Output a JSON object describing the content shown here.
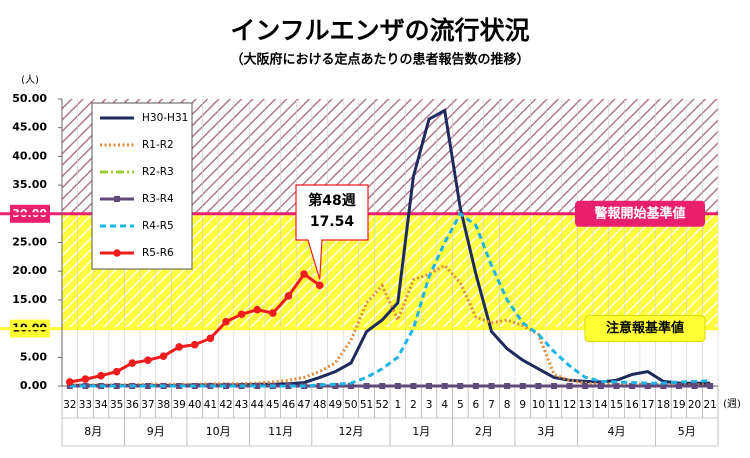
{
  "chart_data": {
    "type": "line",
    "title": "インフルエンザの流行状況",
    "subtitle": "（大阪府における定点あたりの患者報告数の推移）",
    "y_unit": "(人)",
    "x_unit": "(週)",
    "categories": [
      "32",
      "33",
      "34",
      "35",
      "36",
      "37",
      "38",
      "39",
      "40",
      "41",
      "42",
      "43",
      "44",
      "45",
      "46",
      "47",
      "48",
      "49",
      "50",
      "51",
      "52",
      "1",
      "2",
      "3",
      "4",
      "5",
      "6",
      "7",
      "8",
      "9",
      "10",
      "11",
      "12",
      "13",
      "14",
      "15",
      "16",
      "17",
      "18",
      "19",
      "20",
      "21"
    ],
    "x_groups": [
      {
        "label": "8月",
        "span": 4
      },
      {
        "label": "9月",
        "span": 4
      },
      {
        "label": "10月",
        "span": 4
      },
      {
        "label": "11月",
        "span": 4
      },
      {
        "label": "12月",
        "span": 5
      },
      {
        "label": "1月",
        "span": 4
      },
      {
        "label": "2月",
        "span": 4
      },
      {
        "label": "3月",
        "span": 4
      },
      {
        "label": "4月",
        "span": 5
      },
      {
        "label": "5月",
        "span": 4
      }
    ],
    "ylim": [
      0,
      50
    ],
    "yticks": [
      {
        "value": 0,
        "label": "0.00"
      },
      {
        "value": 5,
        "label": "5.00"
      },
      {
        "value": 10,
        "label": "10.00"
      },
      {
        "value": 15,
        "label": "15.00"
      },
      {
        "value": 20,
        "label": "20.00"
      },
      {
        "value": 25,
        "label": "25.00"
      },
      {
        "value": 30,
        "label": "30.00"
      },
      {
        "value": 35,
        "label": "35.00"
      },
      {
        "value": 40,
        "label": "40.00"
      },
      {
        "value": 45,
        "label": "45.00"
      },
      {
        "value": 50,
        "label": "50.00"
      }
    ],
    "thresholds": [
      {
        "value": 30,
        "label": "警報開始基準値",
        "color": "#e8206e",
        "band": "#b07890"
      },
      {
        "value": 10,
        "label": "注意報基準値",
        "color": "#ffff33",
        "band": "#ffff40"
      }
    ],
    "series": [
      {
        "name": "H30-H31",
        "color": "#1f2a5c",
        "style": "solid",
        "values": [
          0.1,
          0.1,
          0.1,
          0.1,
          0.1,
          0.1,
          0.1,
          0.1,
          0.2,
          0.2,
          0.2,
          0.2,
          0.3,
          0.3,
          0.4,
          0.6,
          1.5,
          2.5,
          4,
          9.5,
          11.5,
          14.5,
          36.5,
          46.5,
          48,
          31,
          19.5,
          9.5,
          6.5,
          4.5,
          3,
          1.5,
          1,
          0.8,
          0.7,
          1,
          2,
          2.5,
          0.8,
          0.5,
          0.5,
          0.5
        ]
      },
      {
        "name": "R1-R2",
        "color": "#e08a3c",
        "style": "dotted",
        "values": [
          0.2,
          0.2,
          0.2,
          0.2,
          0.2,
          0.3,
          0.3,
          0.3,
          0.3,
          0.4,
          0.4,
          0.4,
          0.5,
          0.7,
          1,
          1.5,
          2.5,
          4,
          8,
          14.5,
          17.5,
          11.5,
          18.5,
          19.5,
          21,
          18,
          12,
          11,
          11.5,
          10.5,
          9,
          2,
          1,
          0.5,
          0.3,
          0.3,
          0.3,
          0.3,
          0.2,
          0.2,
          0.2,
          0.2
        ]
      },
      {
        "name": "R2-R3",
        "color": "#9acd32",
        "style": "dashdot",
        "values": [
          0,
          0,
          0,
          0,
          0,
          0,
          0,
          0,
          0,
          0,
          0,
          0,
          0,
          0,
          0,
          0,
          0,
          0,
          0,
          0,
          0,
          0,
          0,
          0,
          0,
          0,
          0,
          0,
          0,
          0,
          0,
          0,
          0,
          0,
          0,
          0,
          0,
          0,
          0,
          0,
          0,
          0
        ]
      },
      {
        "name": "R3-R4",
        "color": "#604a7b",
        "style": "solid",
        "marker": "square",
        "values": [
          0,
          0,
          0,
          0,
          0,
          0,
          0,
          0,
          0,
          0,
          0,
          0,
          0,
          0,
          0,
          0,
          0,
          0,
          0,
          0,
          0,
          0,
          0,
          0,
          0,
          0,
          0,
          0,
          0,
          0,
          0,
          0,
          0,
          0,
          0,
          0,
          0,
          0,
          0,
          0,
          0,
          0
        ]
      },
      {
        "name": "R4-R5",
        "color": "#1eb4e6",
        "style": "dashed",
        "values": [
          0,
          0,
          0,
          0,
          0,
          0,
          0,
          0,
          0,
          0,
          0,
          0,
          0,
          0,
          0,
          0,
          0.2,
          0.3,
          0.5,
          1.5,
          3,
          5,
          10,
          19,
          25,
          30,
          28,
          21,
          15,
          11,
          9,
          6,
          3.5,
          1.5,
          0.8,
          0.7,
          0.6,
          0.5,
          0.5,
          0.7,
          0.8,
          0.9
        ]
      },
      {
        "name": "R5-R6",
        "color": "#ee1c1c",
        "style": "solid",
        "marker": "circle",
        "values": [
          0.7,
          1.2,
          1.8,
          2.5,
          4,
          4.5,
          5.2,
          6.8,
          7.2,
          8.3,
          11.2,
          12.5,
          13.3,
          12.7,
          15.7,
          19.5,
          17.54,
          null,
          null,
          null,
          null,
          null,
          null,
          null,
          null,
          null,
          null,
          null,
          null,
          null,
          null,
          null,
          null,
          null,
          null,
          null,
          null,
          null,
          null,
          null,
          null,
          null
        ]
      }
    ],
    "annotation": {
      "lines": [
        "第48週",
        "17.54"
      ],
      "series": 5,
      "index": 16
    }
  }
}
